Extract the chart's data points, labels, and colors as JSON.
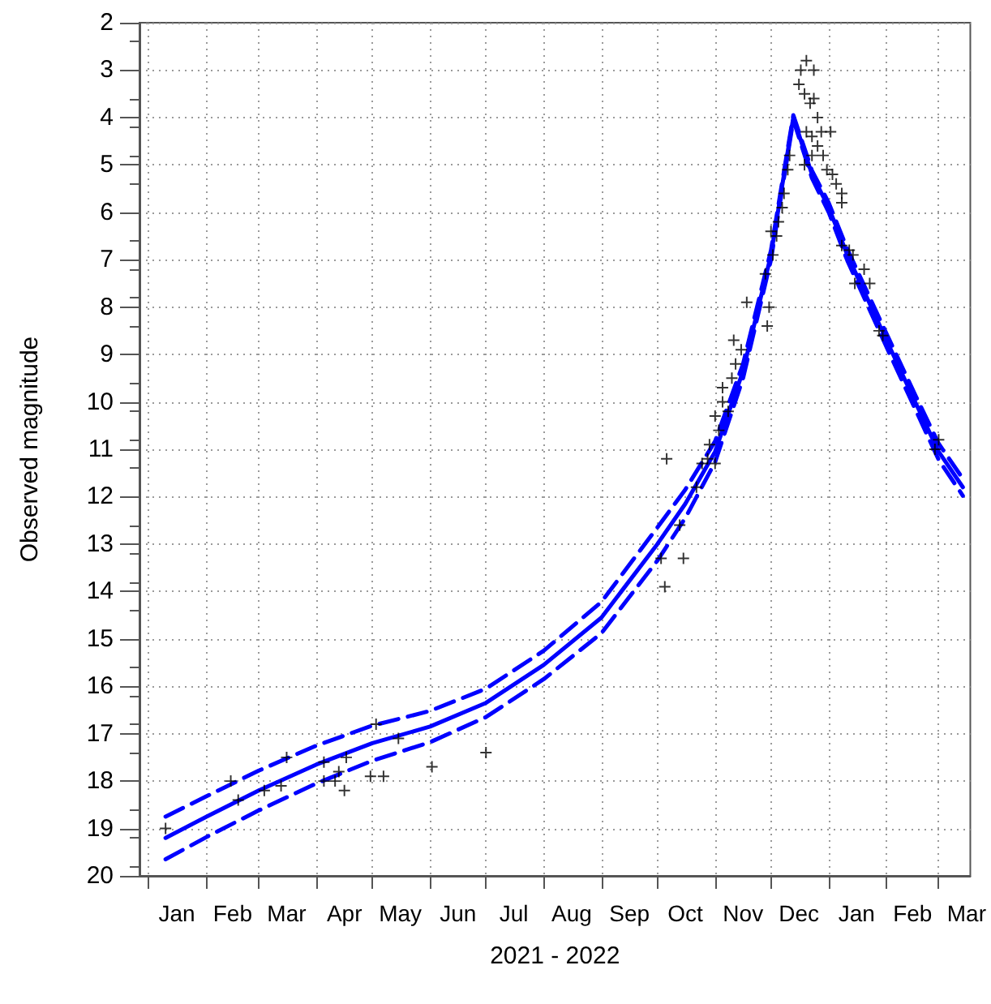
{
  "chart_data": {
    "type": "scatter",
    "xlabel": "2021 - 2022",
    "ylabel": "Observed magnitude",
    "xlim": [
      "2020-12-27",
      "2022-03-18"
    ],
    "ylim": [
      20,
      2
    ],
    "yticks": [
      2,
      3,
      4,
      5,
      6,
      7,
      8,
      9,
      10,
      11,
      12,
      13,
      14,
      15,
      16,
      17,
      18,
      19,
      20
    ],
    "xticks": [
      {
        "value": "2021-01-01",
        "label": null
      },
      {
        "value": "2021-01-16",
        "label": "Jan"
      },
      {
        "value": "2021-02-01",
        "label": null
      },
      {
        "value": "2021-02-15",
        "label": "Feb"
      },
      {
        "value": "2021-03-01",
        "label": null
      },
      {
        "value": "2021-03-16",
        "label": "Mar"
      },
      {
        "value": "2021-04-01",
        "label": null
      },
      {
        "value": "2021-04-16",
        "label": "Apr"
      },
      {
        "value": "2021-05-01",
        "label": null
      },
      {
        "value": "2021-05-16",
        "label": "May"
      },
      {
        "value": "2021-06-01",
        "label": null
      },
      {
        "value": "2021-06-16",
        "label": "Jun"
      },
      {
        "value": "2021-07-01",
        "label": null
      },
      {
        "value": "2021-07-16",
        "label": "Jul"
      },
      {
        "value": "2021-08-01",
        "label": null
      },
      {
        "value": "2021-08-16",
        "label": "Aug"
      },
      {
        "value": "2021-09-01",
        "label": null
      },
      {
        "value": "2021-09-16",
        "label": "Sep"
      },
      {
        "value": "2021-10-01",
        "label": null
      },
      {
        "value": "2021-10-16",
        "label": "Oct"
      },
      {
        "value": "2021-11-01",
        "label": null
      },
      {
        "value": "2021-11-16",
        "label": "Nov"
      },
      {
        "value": "2021-12-01",
        "label": null
      },
      {
        "value": "2021-12-16",
        "label": "Dec"
      },
      {
        "value": "2022-01-01",
        "label": null
      },
      {
        "value": "2022-01-16",
        "label": "Jan"
      },
      {
        "value": "2022-02-01",
        "label": null
      },
      {
        "value": "2022-02-15",
        "label": "Feb"
      },
      {
        "value": "2022-03-01",
        "label": null
      },
      {
        "value": "2022-03-16",
        "label": "Mar"
      }
    ],
    "grid": true,
    "series": [
      {
        "color": "#000000",
        "marker": "cross",
        "x": [
          "2021-01-10",
          "2021-02-14",
          "2021-02-18",
          "2021-03-04",
          "2021-03-13",
          "2021-03-16",
          "2021-04-05",
          "2021-04-05",
          "2021-04-11",
          "2021-04-13",
          "2021-04-16",
          "2021-04-17",
          "2021-04-30",
          "2021-05-07",
          "2021-05-03",
          "2021-05-15",
          "2021-06-02",
          "2021-07-01",
          "2021-10-03",
          "2021-10-05",
          "2021-10-06",
          "2021-10-13",
          "2021-10-15",
          "2021-10-22",
          "2021-10-25",
          "2021-10-28",
          "2021-10-29",
          "2021-11-01",
          "2021-11-01",
          "2021-11-03",
          "2021-11-05",
          "2021-11-05",
          "2021-11-08",
          "2021-11-10",
          "2021-11-11",
          "2021-11-12",
          "2021-11-15",
          "2021-11-18",
          "2021-11-29",
          "2021-11-30",
          "2021-11-28",
          "2021-12-02",
          "2021-12-01",
          "2021-12-04",
          "2021-12-05",
          "2021-12-07",
          "2021-12-08",
          "2021-12-10",
          "2021-12-11",
          "2021-12-16",
          "2021-12-17",
          "2021-12-20",
          "2021-12-24",
          "2021-12-19",
          "2021-12-22",
          "2021-12-24",
          "2021-12-26",
          "2021-12-20",
          "2021-12-23",
          "2021-12-26",
          "2021-12-19",
          "2021-12-23",
          "2021-12-29",
          "2021-12-31",
          "2022-01-02",
          "2021-12-28",
          "2022-01-03",
          "2022-01-05",
          "2022-01-08",
          "2022-01-08",
          "2022-01-08",
          "2022-01-12",
          "2022-01-14",
          "2022-01-15",
          "2022-01-20",
          "2022-01-23",
          "2022-01-28",
          "2022-01-30",
          "2022-03-01",
          "2022-02-27"
        ],
        "values": [
          19.0,
          18.0,
          18.4,
          18.2,
          18.1,
          17.5,
          17.6,
          18.0,
          18.0,
          17.8,
          18.2,
          17.5,
          17.9,
          17.9,
          16.8,
          17.1,
          17.7,
          17.4,
          13.3,
          13.9,
          11.2,
          12.6,
          13.3,
          11.8,
          11.3,
          11.2,
          10.9,
          11.3,
          10.3,
          10.6,
          10.0,
          9.7,
          10.2,
          9.5,
          8.7,
          9.2,
          8.9,
          7.9,
          8.4,
          8.0,
          7.3,
          6.9,
          6.4,
          6.5,
          6.2,
          5.9,
          5.6,
          5.1,
          4.8,
          3.3,
          3.0,
          2.8,
          3.0,
          3.5,
          3.7,
          3.6,
          4.0,
          4.3,
          4.4,
          4.6,
          5.0,
          4.8,
          4.8,
          5.1,
          4.3,
          4.3,
          5.2,
          5.4,
          5.6,
          5.8,
          6.7,
          6.8,
          6.9,
          7.5,
          7.2,
          7.5,
          8.5,
          8.6,
          10.8,
          11.0
        ]
      },
      {
        "type": "line",
        "color": "#0000ff",
        "line_style": "solid",
        "marker": "none",
        "x": [
          "2021-01-10",
          "2021-02-01",
          "2021-03-01",
          "2021-04-01",
          "2021-05-01",
          "2021-06-01",
          "2021-07-01",
          "2021-08-01",
          "2021-09-01",
          "2021-10-01",
          "2021-10-16",
          "2021-11-01",
          "2021-11-16",
          "2021-12-01",
          "2021-12-08",
          "2021-12-13",
          "2021-12-23",
          "2022-01-01",
          "2022-01-11",
          "2022-02-01",
          "2022-02-17",
          "2022-03-01",
          "2022-03-14"
        ],
        "values": [
          19.2,
          18.75,
          18.2,
          17.65,
          17.2,
          16.85,
          16.35,
          15.55,
          14.55,
          13.0,
          12.15,
          11.05,
          9.35,
          6.9,
          5.2,
          4.0,
          5.2,
          5.9,
          6.9,
          8.7,
          10.05,
          11.05,
          11.8
        ]
      },
      {
        "type": "line",
        "color": "#0000ff",
        "line_style": "dashed",
        "marker": "none",
        "x": [
          "2021-01-10",
          "2021-02-01",
          "2021-03-01",
          "2021-04-01",
          "2021-05-01",
          "2021-06-01",
          "2021-07-01",
          "2021-08-01",
          "2021-09-01",
          "2021-10-01",
          "2021-10-16",
          "2021-11-01",
          "2021-11-16",
          "2021-12-01",
          "2021-12-08",
          "2021-12-13",
          "2021-12-23",
          "2022-01-01",
          "2022-01-11",
          "2022-02-01",
          "2022-02-17",
          "2022-03-01",
          "2022-03-14"
        ],
        "values": [
          18.75,
          18.32,
          17.78,
          17.25,
          16.83,
          16.52,
          16.05,
          15.25,
          14.22,
          12.65,
          11.85,
          10.83,
          9.2,
          6.8,
          5.13,
          3.95,
          5.12,
          5.8,
          6.78,
          8.56,
          9.9,
          10.88,
          11.62
        ]
      },
      {
        "type": "line",
        "color": "#0000ff",
        "line_style": "dashed",
        "marker": "none",
        "x": [
          "2021-01-10",
          "2021-02-01",
          "2021-03-01",
          "2021-04-01",
          "2021-05-01",
          "2021-06-01",
          "2021-07-01",
          "2021-08-01",
          "2021-09-01",
          "2021-10-01",
          "2021-10-16",
          "2021-11-01",
          "2021-11-16",
          "2021-12-01",
          "2021-12-08",
          "2021-12-13",
          "2021-12-23",
          "2022-01-01",
          "2022-01-11",
          "2022-02-01",
          "2022-02-17",
          "2022-03-01",
          "2022-03-14"
        ],
        "values": [
          19.65,
          19.18,
          18.62,
          18.05,
          17.57,
          17.18,
          16.65,
          15.85,
          14.88,
          13.35,
          12.45,
          11.27,
          9.5,
          7.0,
          5.27,
          4.05,
          5.28,
          6.0,
          7.02,
          8.84,
          10.2,
          11.22,
          11.98
        ]
      }
    ]
  }
}
